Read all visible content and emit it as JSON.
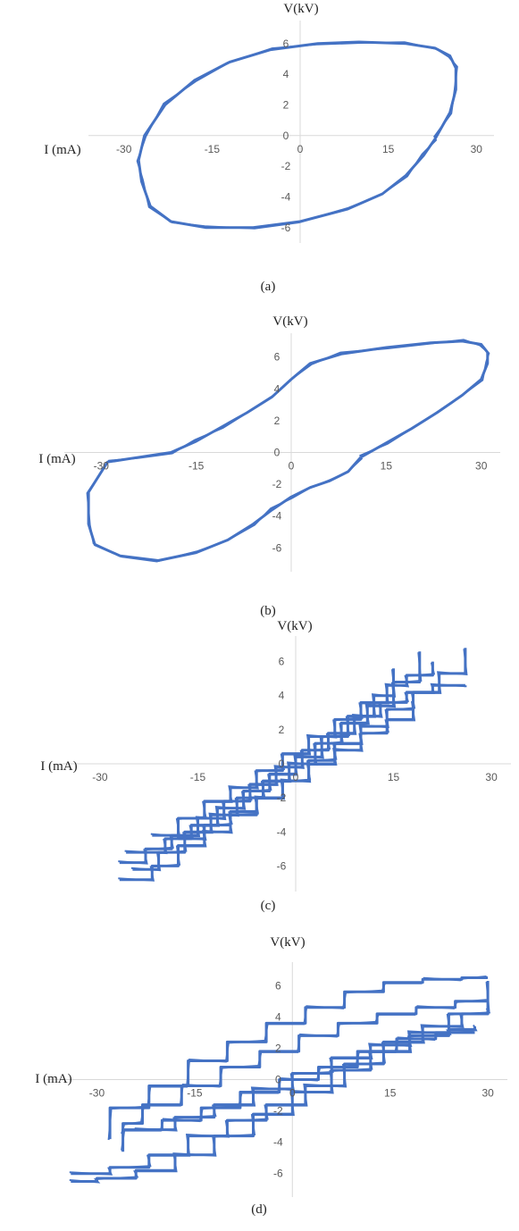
{
  "chart_data": [
    {
      "type": "line",
      "panel": "(a)",
      "caption": "(a)",
      "xlabel": "I (mA)",
      "ylabel": "V(kV)",
      "x_ticks": [
        "-30",
        "-15",
        "0",
        "15",
        "30"
      ],
      "y_ticks": [
        "-6",
        "-4",
        "-2",
        "0",
        "2",
        "4",
        "6"
      ],
      "xlim": [
        -33,
        33
      ],
      "ylim": [
        -7,
        7.5
      ],
      "grid": false,
      "color": "#4472C4",
      "series": [
        {
          "x": [
            23.0,
            25.5,
            26.5,
            26.5,
            25.5,
            23.0,
            18.0,
            10.0,
            3.0,
            -5.0,
            -12.0,
            -18.0,
            -23.0,
            -26.5,
            -27.5,
            -27.0,
            -25.5,
            -22.0,
            -16.0,
            -8.0,
            0.0,
            8.0,
            14.0,
            18.0,
            21.0,
            23.0
          ],
          "y": [
            -0.2,
            1.5,
            3.0,
            4.4,
            5.2,
            5.7,
            6.0,
            6.1,
            6.0,
            5.6,
            4.8,
            3.6,
            2.0,
            0.0,
            -1.6,
            -3.0,
            -4.6,
            -5.6,
            -6.0,
            -6.0,
            -5.6,
            -4.8,
            -3.8,
            -2.6,
            -1.3,
            -0.2
          ]
        }
      ]
    },
    {
      "type": "line",
      "panel": "(b)",
      "caption": "(b)",
      "xlabel": "I (mA)",
      "ylabel": "V(kV)",
      "x_ticks": [
        "-30",
        "-15",
        "0",
        "15",
        "30"
      ],
      "y_ticks": [
        "-6",
        "-4",
        "-2",
        "0",
        "2",
        "4",
        "6"
      ],
      "xlim": [
        -33,
        33
      ],
      "ylim": [
        -7.5,
        7.5
      ],
      "grid": false,
      "color": "#4472C4",
      "series": [
        {
          "x": [
            11.0,
            15.0,
            19.0,
            23.0,
            27.0,
            30.0,
            31.0,
            31.0,
            30.0,
            27.0,
            22.0,
            15.0,
            8.0,
            3.0,
            0.0,
            -3.0,
            -7.0,
            -11.0,
            -15.0,
            -19.0,
            -24.0,
            -29.0,
            -32.0,
            -32.0,
            -31.0,
            -27.0,
            -21.0,
            -15.0,
            -10.0,
            -6.0,
            -3.0,
            0.0,
            3.0,
            6.0,
            9.0,
            11.0
          ],
          "y": [
            -0.3,
            0.6,
            1.5,
            2.5,
            3.6,
            4.6,
            5.6,
            6.3,
            6.8,
            7.0,
            6.9,
            6.6,
            6.2,
            5.6,
            4.6,
            3.5,
            2.5,
            1.6,
            0.7,
            0.0,
            -0.3,
            -0.6,
            -2.5,
            -4.5,
            -5.8,
            -6.5,
            -6.8,
            -6.3,
            -5.5,
            -4.5,
            -3.6,
            -2.8,
            -2.2,
            -1.8,
            -1.2,
            -0.3
          ]
        }
      ]
    },
    {
      "type": "line",
      "panel": "(c)",
      "caption": "(c)",
      "xlabel": "I (mA)",
      "ylabel": "V(kV)",
      "x_ticks": [
        "-30",
        "-15",
        "0",
        "15",
        "30"
      ],
      "y_ticks": [
        "-6",
        "-4",
        "-2",
        "0",
        "2",
        "4",
        "6"
      ],
      "xlim": [
        -33,
        33
      ],
      "ylim": [
        -7.5,
        7.5
      ],
      "grid": false,
      "color": "#4472C4",
      "series": [
        {
          "name": "",
          "x": [
            -27.0,
            -22.0,
            -18.0,
            -14.0,
            -10.0,
            -6.0,
            -2.0,
            2.0,
            6.0,
            10.0,
            14.0,
            18.0,
            22.0,
            26.0
          ],
          "y": [
            -6.8,
            -6.0,
            -4.8,
            -4.0,
            -3.0,
            -2.0,
            -1.0,
            0.2,
            1.2,
            2.2,
            3.2,
            4.2,
            5.3,
            6.8
          ]
        },
        {
          "name": "",
          "x": [
            -27.0,
            -23.0,
            -19.0,
            -15.0,
            -11.0,
            -7.0,
            -3.0,
            1.0,
            5.0,
            9.0,
            13.0,
            17.0,
            21.0,
            26.0
          ],
          "y": [
            -5.8,
            -5.0,
            -4.2,
            -3.2,
            -2.2,
            -1.2,
            -0.2,
            0.8,
            1.8,
            2.8,
            3.6,
            4.2,
            4.6,
            4.6
          ]
        },
        {
          "name": "",
          "x": [
            -25.0,
            -21.0,
            -17.0,
            -13.0,
            -9.0,
            -5.0,
            -1.0,
            3.0,
            7.0,
            11.0,
            15.0,
            19.0
          ],
          "y": [
            -6.2,
            -5.2,
            -4.0,
            -3.0,
            -2.0,
            -1.0,
            0.0,
            1.2,
            2.4,
            3.4,
            4.8,
            6.6
          ]
        },
        {
          "name": "",
          "x": [
            -26.0,
            -20.0,
            -16.0,
            -12.0,
            -8.0,
            -4.0,
            0.0,
            4.0,
            8.0,
            12.0,
            15.0
          ],
          "y": [
            -5.2,
            -4.4,
            -3.6,
            -2.6,
            -1.6,
            -0.6,
            0.4,
            1.6,
            2.8,
            4.0,
            5.6
          ]
        },
        {
          "name": "",
          "x": [
            -22.0,
            -18.0,
            -14.0,
            -10.0,
            -6.0,
            -2.0,
            2.0,
            6.0,
            10.0,
            14.0,
            17.0,
            21.0
          ],
          "y": [
            -4.2,
            -3.2,
            -2.2,
            -1.4,
            -0.4,
            0.6,
            1.6,
            2.6,
            3.6,
            4.6,
            5.2,
            6.0
          ]
        },
        {
          "name": "",
          "x": [
            -18.0,
            -14.0,
            -10.0,
            -6.0,
            -2.0,
            2.0,
            6.0,
            10.0,
            14.0,
            18.0
          ],
          "y": [
            -4.4,
            -3.6,
            -2.8,
            -2.0,
            -1.0,
            0.0,
            0.8,
            1.8,
            2.6,
            3.6
          ]
        }
      ]
    },
    {
      "type": "line",
      "panel": "(d)",
      "caption": "(d)",
      "xlabel": "I (mA)",
      "ylabel": "V(kV)",
      "x_ticks": [
        "-30",
        "-15",
        "0",
        "15",
        "30"
      ],
      "y_ticks": [
        "-6",
        "-4",
        "-2",
        "0",
        "2",
        "4",
        "6"
      ],
      "xlim": [
        -35,
        33
      ],
      "ylim": [
        -7.5,
        7.5
      ],
      "grid": false,
      "color": "#4472C4",
      "series": [
        {
          "name": "",
          "x": [
            -34.0,
            -30.0,
            -24.0,
            -18.0,
            -12.0,
            -6.0,
            0.0,
            6.0,
            12.0,
            18.0,
            24.0,
            30.0
          ],
          "y": [
            -6.5,
            -6.3,
            -5.8,
            -4.8,
            -3.6,
            -2.2,
            -0.8,
            0.6,
            1.8,
            3.0,
            4.2,
            6.3
          ]
        },
        {
          "name": "",
          "x": [
            -34.0,
            -28.0,
            -22.0,
            -16.0,
            -10.0,
            -4.0,
            2.0,
            8.0,
            14.0,
            20.0,
            26.0,
            30.0
          ],
          "y": [
            -6.0,
            -5.6,
            -4.8,
            -3.6,
            -2.6,
            -1.6,
            -0.4,
            1.0,
            2.4,
            3.4,
            4.2,
            4.6
          ]
        },
        {
          "name": "",
          "x": [
            30.0,
            26.0,
            20.0,
            14.0,
            8.0,
            2.0,
            -4.0,
            -10.0,
            -16.0,
            -22.0,
            -28.0
          ],
          "y": [
            6.5,
            6.4,
            6.2,
            5.6,
            4.6,
            3.6,
            2.4,
            1.2,
            -0.4,
            -1.8,
            -3.8
          ]
        },
        {
          "name": "",
          "x": [
            30.0,
            25.0,
            19.0,
            13.0,
            7.0,
            1.0,
            -5.0,
            -11.0,
            -17.0,
            -23.0,
            -26.0
          ],
          "y": [
            5.0,
            4.6,
            4.2,
            3.6,
            2.8,
            1.8,
            0.8,
            -0.4,
            -1.6,
            -2.8,
            -3.4
          ]
        },
        {
          "name": "",
          "x": [
            28.0,
            22.0,
            16.0,
            10.0,
            4.0,
            -2.0,
            -8.0,
            -14.0,
            -20.0,
            -26.0
          ],
          "y": [
            3.0,
            2.6,
            1.8,
            0.8,
            0.0,
            -0.8,
            -1.8,
            -2.6,
            -3.2,
            -4.6
          ]
        },
        {
          "name": "",
          "x": [
            -24.0,
            -18.0,
            -12.0,
            -6.0,
            0.0,
            6.0,
            12.0,
            18.0,
            24.0,
            28.0
          ],
          "y": [
            -3.2,
            -2.4,
            -1.6,
            -0.6,
            0.4,
            1.4,
            2.2,
            2.8,
            3.2,
            3.4
          ]
        }
      ]
    }
  ]
}
